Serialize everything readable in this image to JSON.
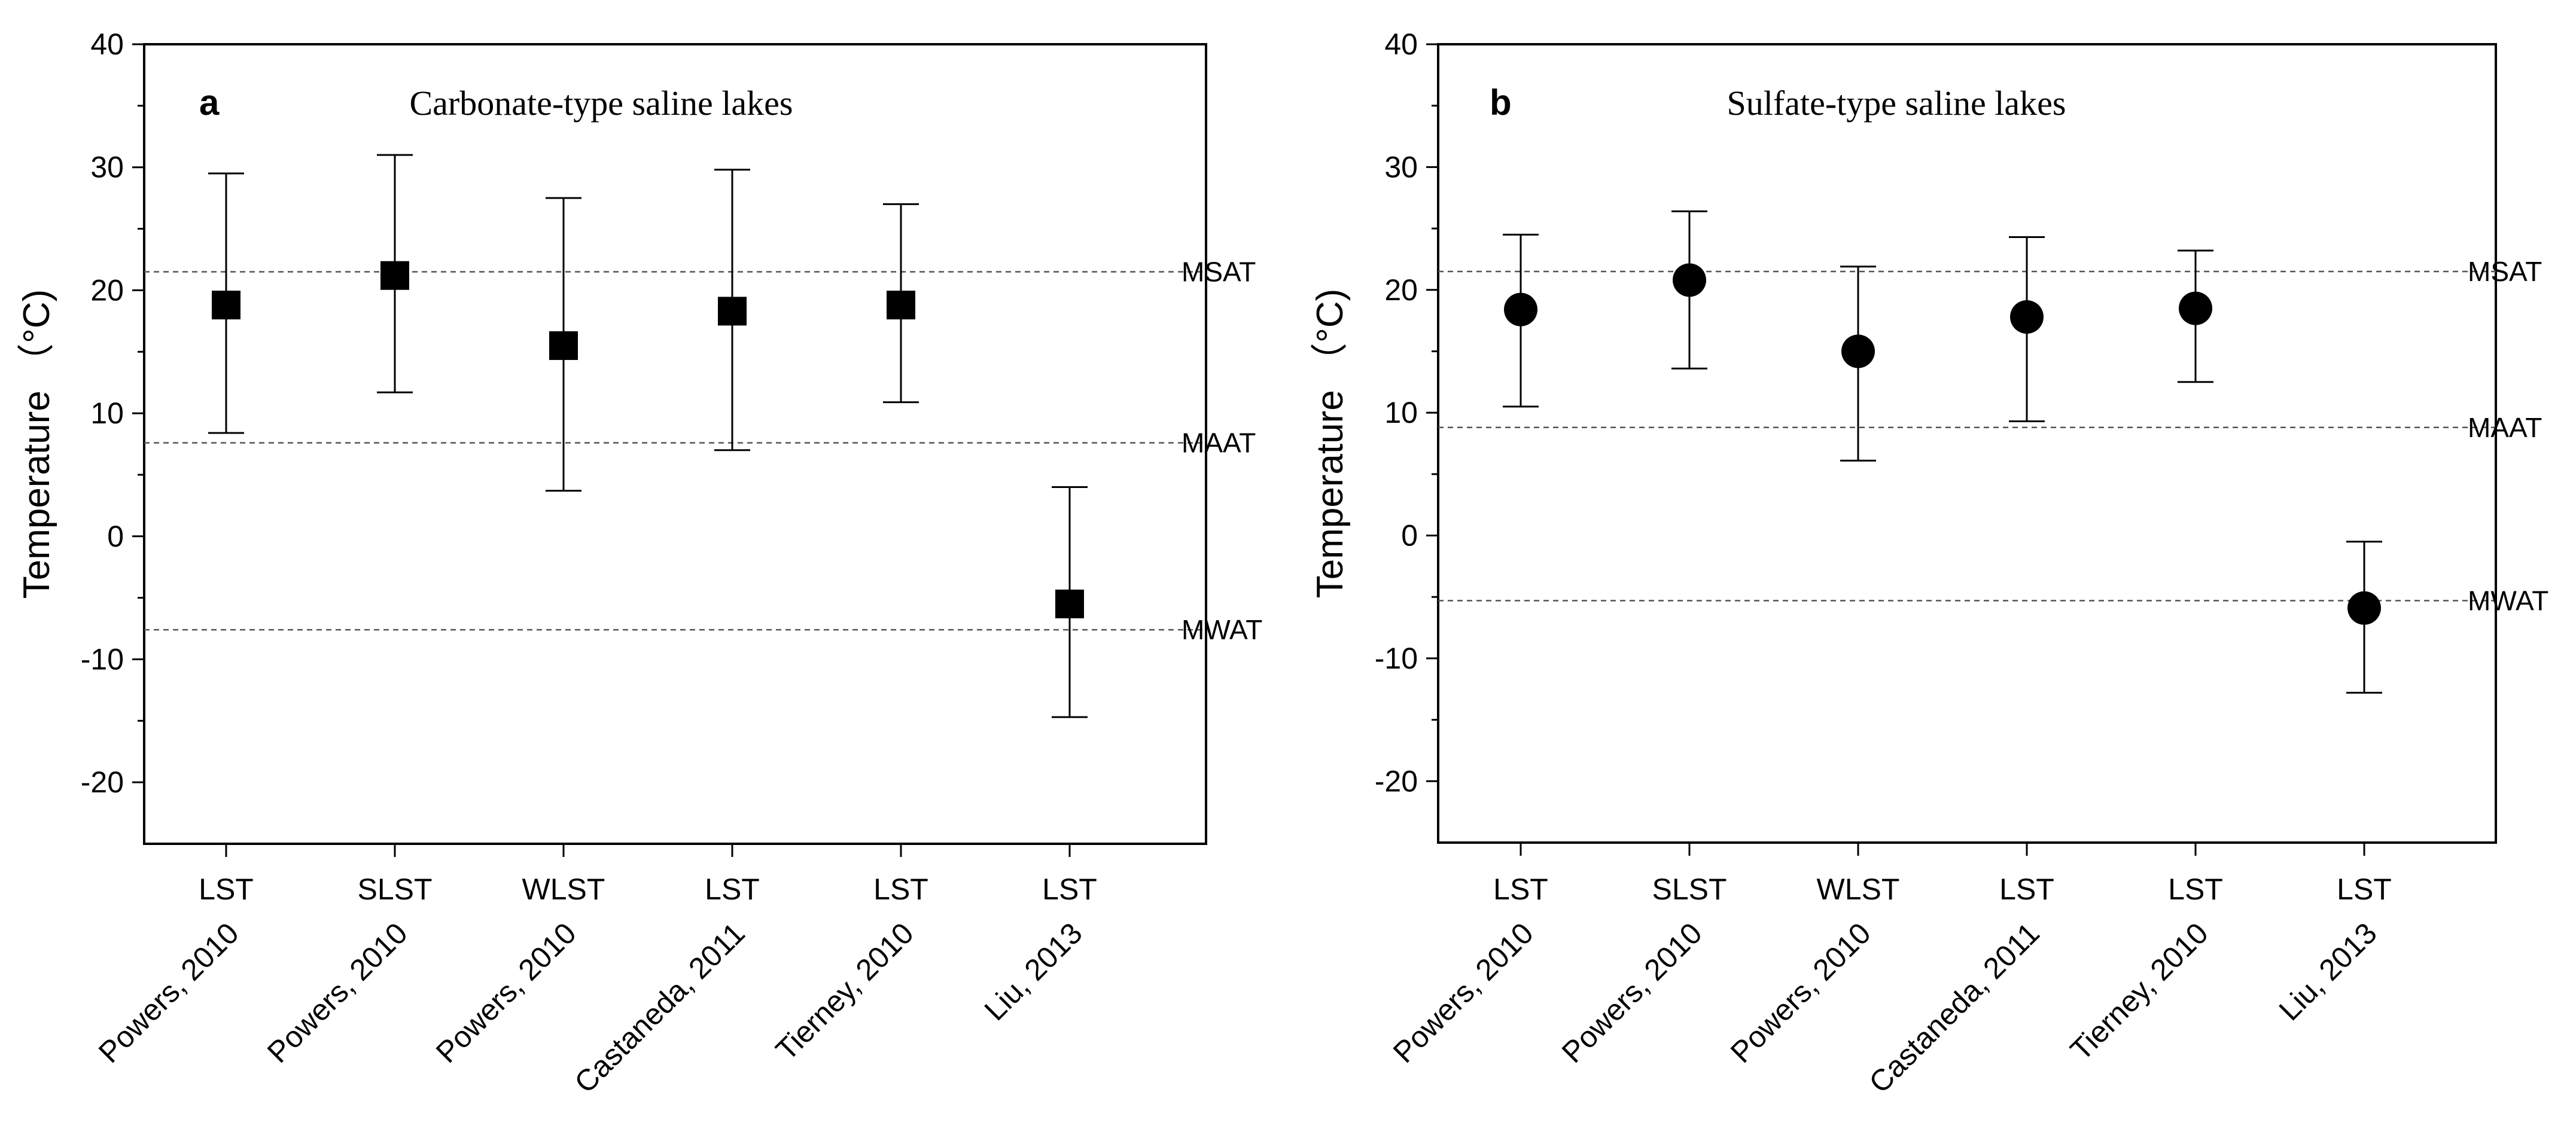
{
  "chart_data": [
    {
      "type": "scatter",
      "panel": "a",
      "title": "Carbonate-type saline lakes",
      "ylabel": "Temperature （°C)",
      "ylim": [
        -25,
        40
      ],
      "yticks": [
        -20,
        -10,
        0,
        10,
        20,
        30,
        40
      ],
      "ytick_labels": [
        "-20",
        "-10",
        "0",
        "10",
        "20",
        "30",
        "40"
      ],
      "categories": [
        {
          "line1": "LST",
          "line2": "Powers, 2010"
        },
        {
          "line1": "SLST",
          "line2": "Powers, 2010"
        },
        {
          "line1": "WLST",
          "line2": "Powers, 2010"
        },
        {
          "line1": "LST",
          "line2": "Castaneda, 2011"
        },
        {
          "line1": "LST",
          "line2": "Tierney, 2010"
        },
        {
          "line1": "LST",
          "line2": "Liu, 2013"
        }
      ],
      "marker": "square",
      "values": [
        18.8,
        21.2,
        15.5,
        18.3,
        18.8,
        -5.5
      ],
      "err_low": [
        8.4,
        11.7,
        3.7,
        7.0,
        10.9,
        -14.7
      ],
      "err_high": [
        29.5,
        31.0,
        27.5,
        29.8,
        27.0,
        4.0
      ],
      "reference_lines": [
        {
          "label": "MSAT",
          "value": 21.5
        },
        {
          "label": "MAAT",
          "value": 7.6
        },
        {
          "label": "MWAT",
          "value": -7.6
        }
      ],
      "grid": false,
      "legend": "none"
    },
    {
      "type": "scatter",
      "panel": "b",
      "title": "Sulfate-type saline lakes",
      "ylabel": "Temperature （°C)",
      "ylim": [
        -25,
        40
      ],
      "yticks": [
        -20,
        -10,
        0,
        10,
        20,
        30,
        40
      ],
      "ytick_labels": [
        "-20",
        "-10",
        "0",
        "10",
        "20",
        "30",
        "40"
      ],
      "categories": [
        {
          "line1": "LST",
          "line2": "Powers, 2010"
        },
        {
          "line1": "SLST",
          "line2": "Powers, 2010"
        },
        {
          "line1": "WLST",
          "line2": "Powers, 2010"
        },
        {
          "line1": "LST",
          "line2": "Castaneda, 2011"
        },
        {
          "line1": "LST",
          "line2": "Tierney, 2010"
        },
        {
          "line1": "LST",
          "line2": "Liu, 2013"
        }
      ],
      "marker": "circle",
      "values": [
        18.4,
        20.8,
        15.0,
        17.8,
        18.5,
        -5.9
      ],
      "err_low": [
        10.5,
        13.6,
        6.1,
        9.3,
        12.5,
        -12.8
      ],
      "err_high": [
        24.5,
        26.4,
        21.9,
        24.3,
        23.2,
        -0.5
      ],
      "reference_lines": [
        {
          "label": "MSAT",
          "value": 21.5
        },
        {
          "label": "MAAT",
          "value": 8.8
        },
        {
          "label": "MWAT",
          "value": -5.3
        }
      ],
      "grid": false,
      "legend": "none"
    }
  ]
}
